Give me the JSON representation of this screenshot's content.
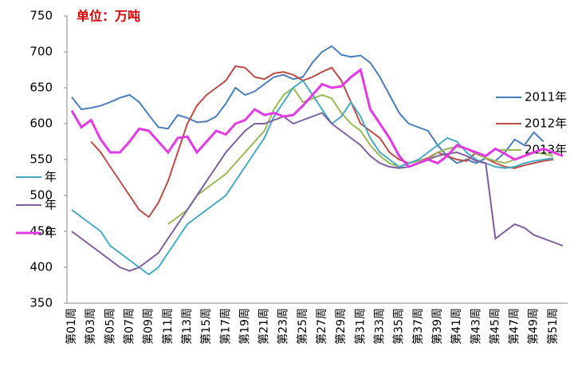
{
  "chart_data": {
    "type": "line",
    "title": "单位：万吨",
    "categories": [
      "第01周",
      null,
      "第03周",
      null,
      "第05周",
      null,
      "第07周",
      null,
      "第09周",
      null,
      "第11周",
      null,
      "第13周",
      null,
      "第15周",
      null,
      "第17周",
      null,
      "第19周",
      null,
      "第21周",
      null,
      "第23周",
      null,
      "第25周",
      null,
      "第27周",
      null,
      "第29周",
      null,
      "第31周",
      null,
      "第33周",
      null,
      "第35周",
      null,
      "第37周",
      null,
      "第39周",
      null,
      "第41周",
      null,
      "第43周",
      null,
      "第45周",
      null,
      "第47周",
      null,
      "第49周",
      null,
      "第51周",
      null
    ],
    "ylim": [
      350,
      750
    ],
    "yticks": [
      350,
      400,
      450,
      500,
      550,
      600,
      650,
      700,
      750
    ],
    "series": [
      {
        "name": "2011年",
        "color": "#4a7ebb",
        "values": [
          637,
          620,
          622,
          625,
          630,
          636,
          640,
          630,
          612,
          595,
          593,
          612,
          608,
          602,
          603,
          610,
          628,
          650,
          640,
          645,
          655,
          665,
          668,
          662,
          665,
          685,
          700,
          708,
          696,
          693,
          695,
          685,
          665,
          640,
          615,
          600,
          595,
          590,
          570,
          555,
          545,
          550,
          545,
          552,
          548,
          560,
          578,
          570,
          588,
          575,
          null,
          null
        ]
      },
      {
        "name": "2012年",
        "color": "#be4b48",
        "values": [
          null,
          null,
          575,
          560,
          540,
          520,
          500,
          480,
          470,
          490,
          520,
          560,
          600,
          625,
          640,
          650,
          660,
          680,
          678,
          665,
          662,
          670,
          672,
          668,
          660,
          665,
          672,
          678,
          660,
          630,
          600,
          590,
          580,
          560,
          550,
          545,
          548,
          552,
          560,
          555,
          550,
          548,
          560,
          552,
          545,
          540,
          538,
          542,
          545,
          548,
          550,
          null
        ]
      },
      {
        "name": "2013年",
        "color": "#98b954",
        "values": [
          null,
          null,
          null,
          null,
          null,
          null,
          null,
          null,
          null,
          null,
          460,
          470,
          480,
          500,
          510,
          520,
          530,
          545,
          560,
          575,
          590,
          620,
          640,
          650,
          630,
          635,
          640,
          635,
          615,
          600,
          590,
          570,
          555,
          545,
          540,
          545,
          548,
          550,
          560,
          565,
          568,
          565,
          558,
          552,
          548,
          545,
          550,
          555,
          560,
          558,
          555,
          null
        ]
      },
      {
        "name": "年",
        "color": "#46aac5",
        "values": [
          480,
          470,
          460,
          450,
          430,
          420,
          410,
          400,
          390,
          400,
          420,
          440,
          460,
          470,
          480,
          490,
          500,
          520,
          540,
          560,
          580,
          610,
          630,
          650,
          660,
          640,
          620,
          600,
          610,
          630,
          610,
          580,
          560,
          550,
          540,
          545,
          550,
          560,
          570,
          580,
          575,
          560,
          550,
          545,
          540,
          538,
          540,
          545,
          548,
          550,
          552,
          null
        ]
      },
      {
        "name": "年",
        "color": "#7d5fa0",
        "values": [
          450,
          440,
          430,
          420,
          410,
          400,
          395,
          400,
          410,
          420,
          440,
          460,
          480,
          500,
          520,
          540,
          560,
          575,
          590,
          600,
          600,
          605,
          610,
          600,
          605,
          610,
          615,
          600,
          590,
          580,
          570,
          555,
          545,
          540,
          538,
          540,
          545,
          550,
          555,
          558,
          560,
          555,
          548,
          545,
          440,
          450,
          460,
          455,
          445,
          440,
          435,
          430
        ]
      },
      {
        "name": "年",
        "color": "#e33be3",
        "values": [
          618,
          595,
          605,
          578,
          560,
          560,
          575,
          593,
          590,
          575,
          560,
          580,
          582,
          560,
          575,
          590,
          585,
          600,
          605,
          620,
          612,
          615,
          610,
          612,
          625,
          640,
          655,
          650,
          652,
          665,
          675,
          620,
          600,
          580,
          555,
          540,
          545,
          550,
          545,
          555,
          570,
          565,
          560,
          555,
          565,
          558,
          550,
          555,
          560,
          565,
          560,
          555
        ]
      }
    ]
  }
}
